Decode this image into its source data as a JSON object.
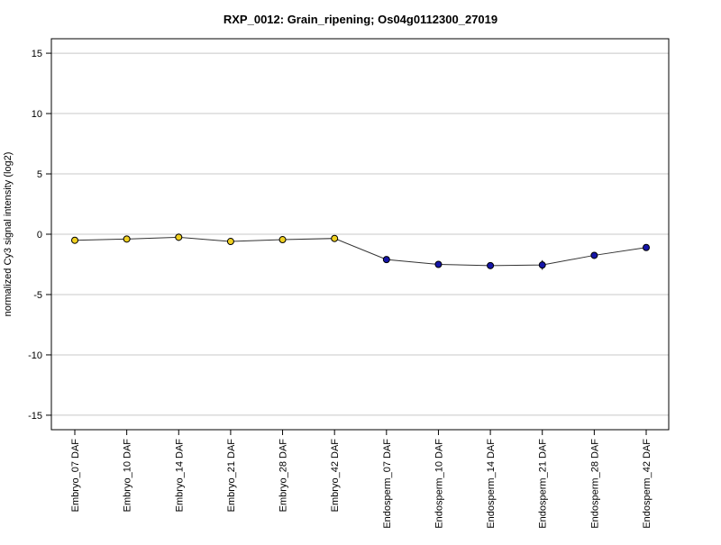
{
  "chart_data": {
    "type": "line",
    "title": "RXP_0012: Grain_ripening; Os04g0112300_27019",
    "xlabel": "",
    "ylabel": "normalized Cy3 signal intensity (log2)",
    "ylim": [
      -16.2,
      16.2
    ],
    "yticks": [
      15,
      10,
      5,
      0,
      -5,
      -10,
      -15
    ],
    "grid": true,
    "categories": [
      "Embryo_07 DAF",
      "Embryo_10 DAF",
      "Embryo_14 DAF",
      "Embryo_21 DAF",
      "Embryo_28 DAF",
      "Embryo_42 DAF",
      "Endosperm_07 DAF",
      "Endosperm_10 DAF",
      "Endosperm_14 DAF",
      "Endosperm_21 DAF",
      "Endosperm_28 DAF",
      "Endosperm_42 DAF"
    ],
    "series": [
      {
        "values": [
          -0.5,
          -0.4,
          -0.25,
          -0.6,
          -0.45,
          -0.35,
          -2.1,
          -2.5,
          -2.6,
          -2.55,
          -1.75,
          -1.1
        ],
        "error": [
          0.1,
          0.1,
          0.3,
          0.1,
          0.1,
          0.1,
          0.1,
          0.15,
          0.1,
          0.4,
          0.1,
          0.1
        ],
        "colors": [
          "#f0d020",
          "#f0d020",
          "#f0d020",
          "#f0d020",
          "#f0d020",
          "#f0d020",
          "#1515a8",
          "#1515a8",
          "#1515a8",
          "#1515a8",
          "#1515a8",
          "#1515a8"
        ]
      }
    ]
  },
  "colors": {
    "line": "#333333",
    "grid": "#c8c8c8",
    "frame": "#000000"
  }
}
